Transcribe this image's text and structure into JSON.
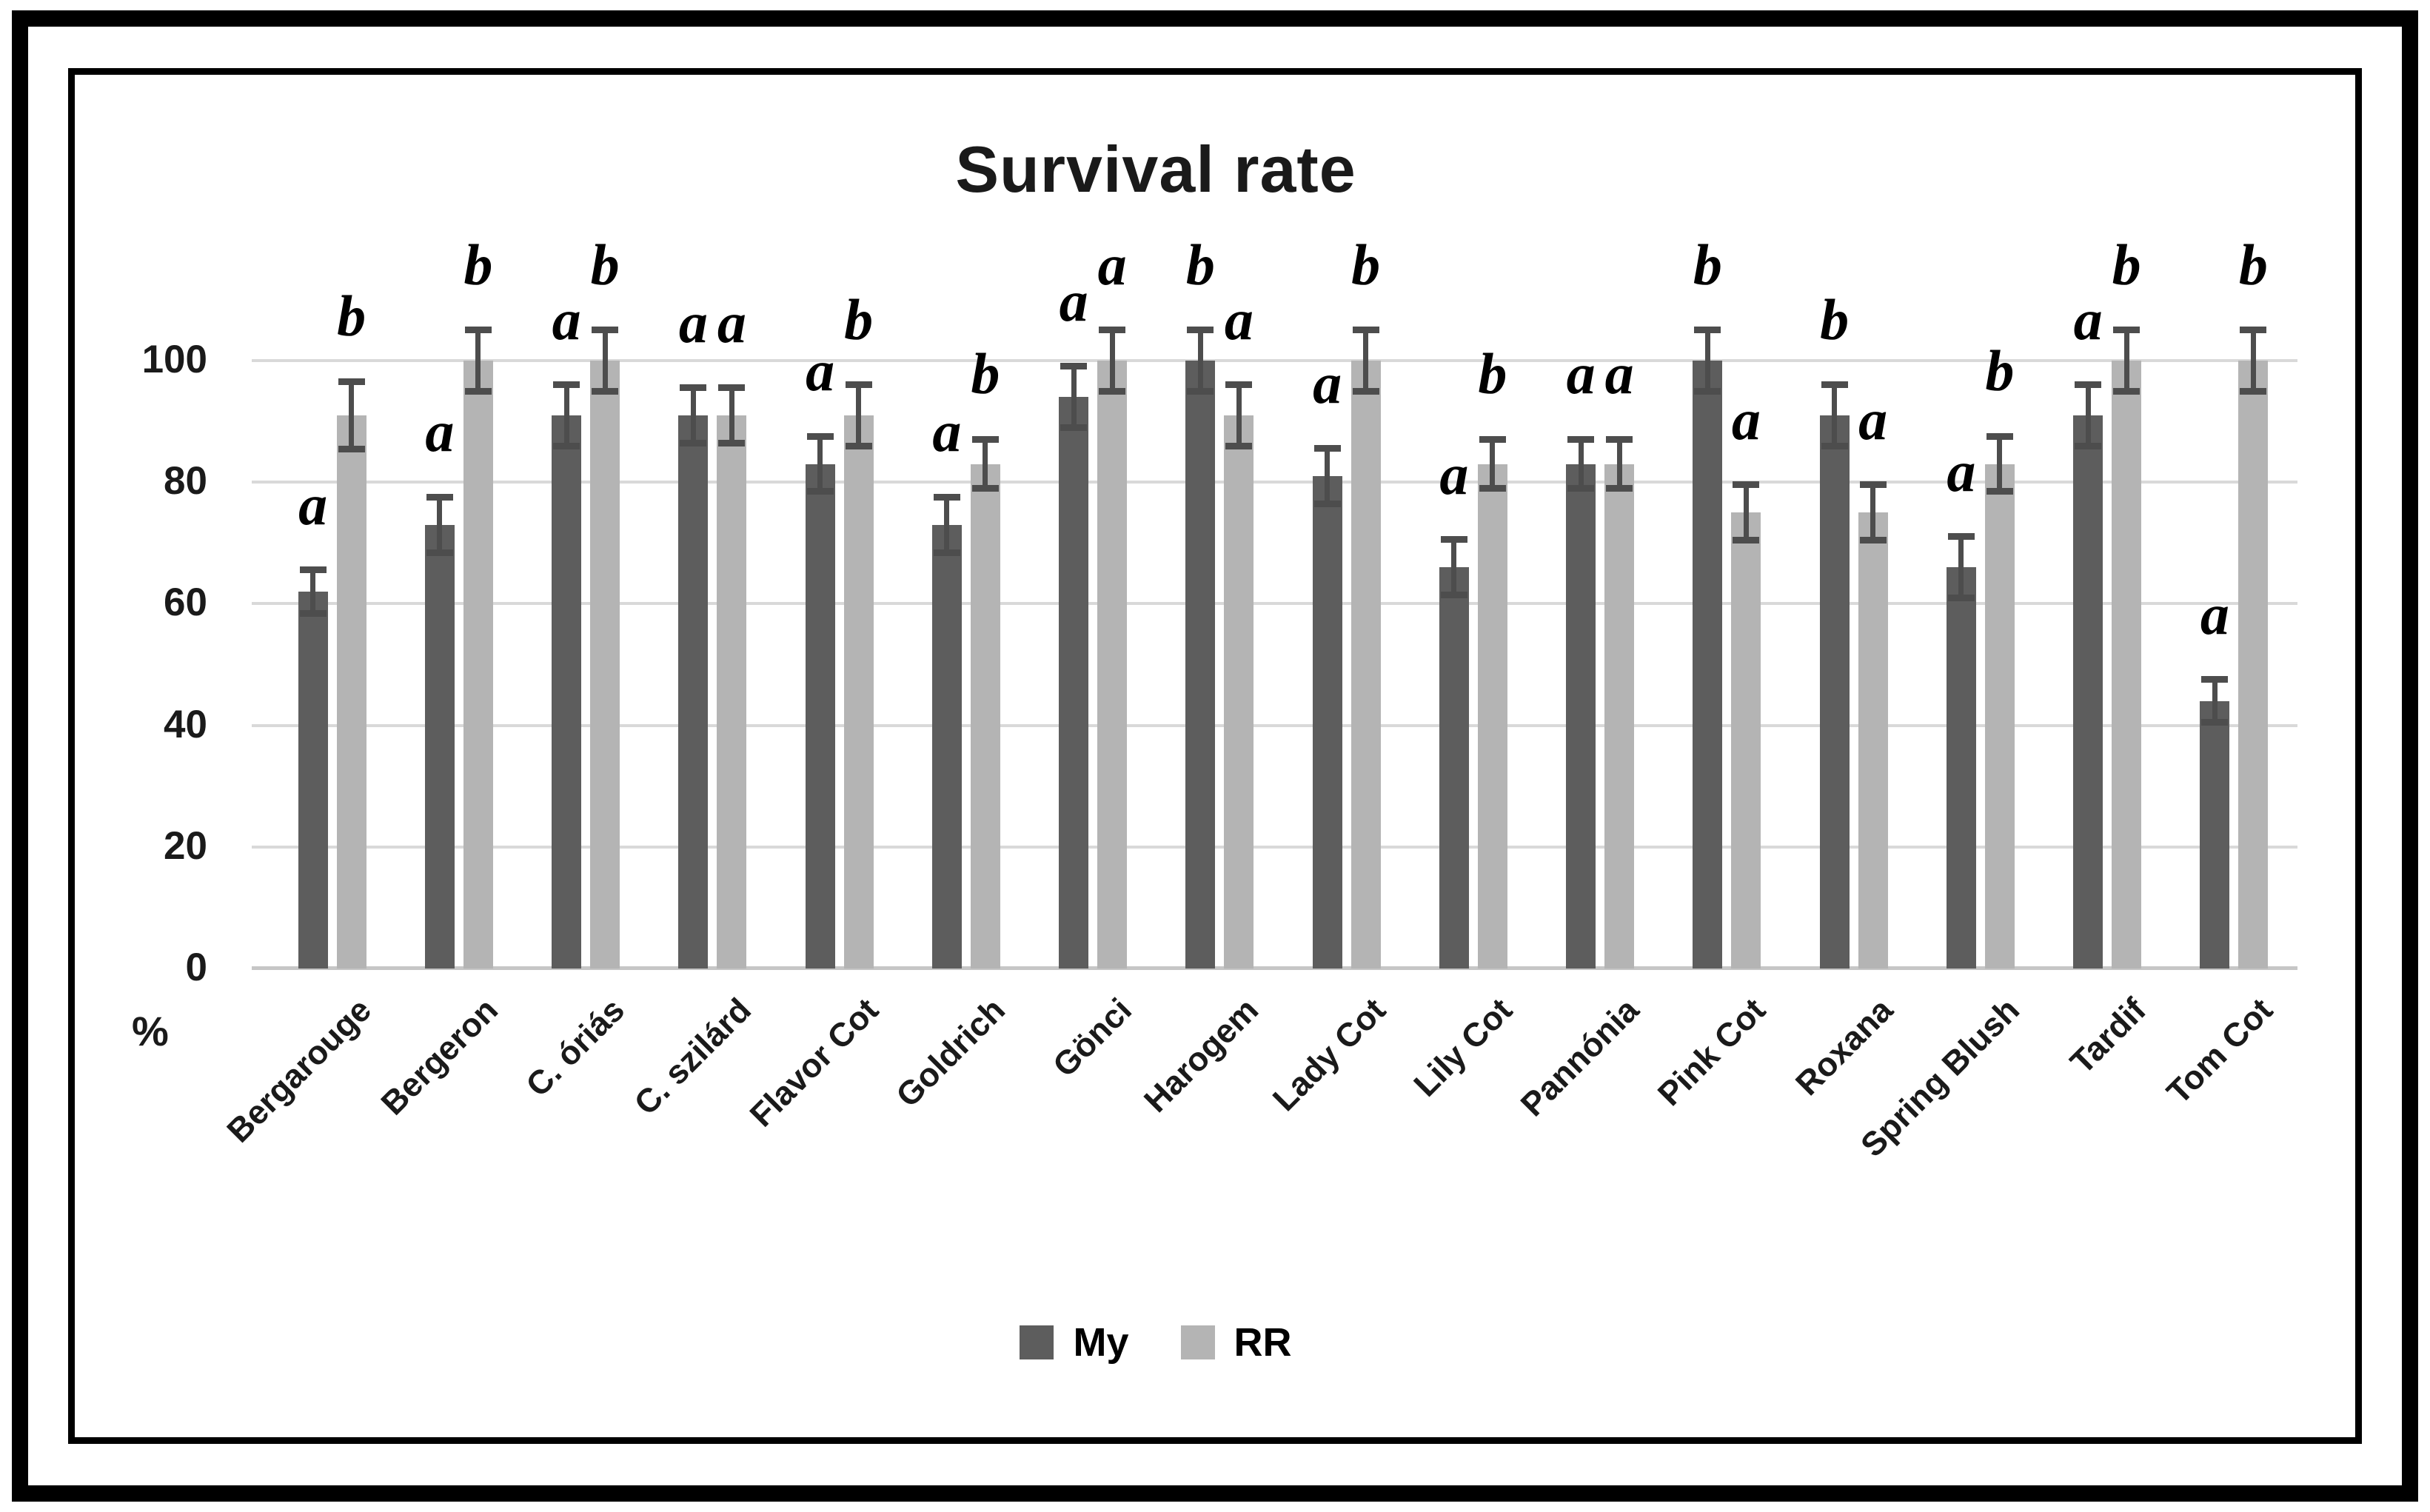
{
  "figure": {
    "title": "Survival rate",
    "y_unit_label": "%"
  },
  "chart_data": {
    "type": "bar",
    "title": "Survival rate",
    "xlabel": "",
    "ylabel": "%",
    "ylim": [
      0,
      100
    ],
    "y_ticks": [
      100,
      80,
      60,
      40,
      20,
      0
    ],
    "grid": "horizontal",
    "legend_position": "bottom",
    "categories": [
      "Bergarouge",
      "Bergeron",
      "C. óriás",
      "C. szilárd",
      "Flavor Cot",
      "Goldrich",
      "Gönci",
      "Harogem",
      "Lady Cot",
      "Lily Cot",
      "Pannónia",
      "Pink Cot",
      "Roxana",
      "Spring Blush",
      "Tardif",
      "Tom Cot"
    ],
    "series": [
      {
        "name": "My",
        "color": "#5d5d5d",
        "values": [
          62,
          73,
          91,
          91,
          83,
          73,
          94,
          100,
          81,
          66,
          83,
          100,
          91,
          66,
          91,
          44
        ],
        "errors": [
          3,
          4,
          4.5,
          4,
          4,
          4,
          4.5,
          4.5,
          4,
          4,
          3.5,
          4.5,
          4.5,
          4.5,
          4.5,
          3
        ],
        "letters": [
          "a",
          "a",
          "a",
          "a",
          "a",
          "a",
          "a",
          "b",
          "a",
          "a",
          "a",
          "b",
          "b",
          "a",
          "a",
          "a"
        ]
      },
      {
        "name": "RR",
        "color": "#b4b4b4",
        "values": [
          91,
          100,
          100,
          91,
          91,
          83,
          100,
          91,
          100,
          83,
          83,
          75,
          75,
          83,
          100,
          100
        ],
        "errors": [
          5,
          4.5,
          4.5,
          4,
          4.5,
          3.5,
          4.5,
          4.5,
          4.5,
          3.5,
          3.5,
          4,
          4,
          4,
          4.5,
          4.5
        ],
        "letters": [
          "b",
          "b",
          "b",
          "a",
          "b",
          "b",
          "a",
          "a",
          "b",
          "b",
          "a",
          "a",
          "a",
          "b",
          "b",
          "b"
        ]
      }
    ]
  },
  "legend": {
    "items": [
      {
        "label": "My",
        "color": "#5d5d5d"
      },
      {
        "label": "RR",
        "color": "#b4b4b4"
      }
    ]
  },
  "colors": {
    "dark_bar": "#5d5d5d",
    "light_bar": "#b4b4b4",
    "error_bar": "#4d4d4d",
    "gridline": "#d9d9d9",
    "baseline": "#c6c6c6",
    "text": "#1a1a1a",
    "frame": "#000000"
  }
}
